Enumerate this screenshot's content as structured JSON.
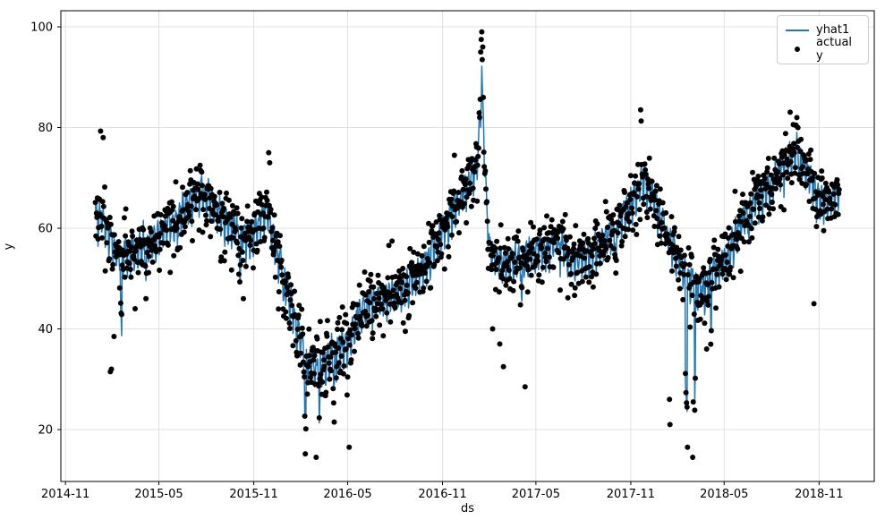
{
  "figure": {
    "background": "#ffffff"
  },
  "chart_data": {
    "type": "line+scatter",
    "title": "",
    "xlabel": "ds",
    "ylabel": "y",
    "grid": true,
    "xlim": [
      "2014-10-23",
      "2019-02-16"
    ],
    "ylim": [
      9.7,
      103.2
    ],
    "yticks": [
      20,
      40,
      60,
      80,
      100
    ],
    "xticks": [
      {
        "label": "2014-11",
        "date": "2014-11-01"
      },
      {
        "label": "2015-05",
        "date": "2015-05-01"
      },
      {
        "label": "2015-11",
        "date": "2015-11-01"
      },
      {
        "label": "2016-05",
        "date": "2016-05-01"
      },
      {
        "label": "2016-11",
        "date": "2016-11-01"
      },
      {
        "label": "2017-05",
        "date": "2017-05-01"
      },
      {
        "label": "2017-11",
        "date": "2017-11-01"
      },
      {
        "label": "2018-05",
        "date": "2018-05-01"
      },
      {
        "label": "2018-11",
        "date": "2018-11-01"
      }
    ],
    "legend": {
      "position": "upper right",
      "entries": [
        {
          "label": "yhat1",
          "type": "line",
          "color": "#1f77b4"
        },
        {
          "label": "actual y",
          "type": "scatter",
          "color": "#000000"
        }
      ]
    },
    "colors": {
      "line": "#1f77b4",
      "dots": "#000000",
      "grid": "#e0e0e0",
      "spine": "#000000",
      "tick_text": "#000000"
    },
    "series": {
      "sampling": "daily",
      "start": "2014-12-29",
      "end": "2018-12-10",
      "note": "yhat1 = blue daily forecast line (trend + weekly seasonality + dips); actual y = black dots scattered around it; values read off axes",
      "trend_anchors": [
        [
          "2014-12-29",
          62
        ],
        [
          "2015-01-10",
          63
        ],
        [
          "2015-01-25",
          59
        ],
        [
          "2015-02-10",
          55
        ],
        [
          "2015-03-01",
          56
        ],
        [
          "2015-04-01",
          57
        ],
        [
          "2015-05-01",
          59
        ],
        [
          "2015-06-01",
          62
        ],
        [
          "2015-07-01",
          66
        ],
        [
          "2015-07-20",
          68
        ],
        [
          "2015-08-10",
          66
        ],
        [
          "2015-09-01",
          62
        ],
        [
          "2015-10-01",
          60
        ],
        [
          "2015-11-01",
          59
        ],
        [
          "2015-11-22",
          64
        ],
        [
          "2015-12-01",
          62
        ],
        [
          "2015-12-15",
          56
        ],
        [
          "2016-01-01",
          50
        ],
        [
          "2016-01-20",
          42
        ],
        [
          "2016-02-10",
          35
        ],
        [
          "2016-03-01",
          32
        ],
        [
          "2016-03-20",
          34
        ],
        [
          "2016-04-10",
          36
        ],
        [
          "2016-05-01",
          38
        ],
        [
          "2016-05-20",
          43
        ],
        [
          "2016-06-10",
          46
        ],
        [
          "2016-07-01",
          47
        ],
        [
          "2016-08-01",
          47
        ],
        [
          "2016-09-01",
          50
        ],
        [
          "2016-10-01",
          54
        ],
        [
          "2016-11-01",
          60
        ],
        [
          "2016-12-01",
          66
        ],
        [
          "2016-12-20",
          69
        ],
        [
          "2017-01-05",
          72
        ],
        [
          "2017-01-12",
          80
        ],
        [
          "2017-01-16",
          90
        ],
        [
          "2017-01-20",
          79
        ],
        [
          "2017-01-26",
          64
        ],
        [
          "2017-02-01",
          56
        ],
        [
          "2017-02-15",
          54
        ],
        [
          "2017-03-15",
          54
        ],
        [
          "2017-04-15",
          55
        ],
        [
          "2017-05-15",
          56
        ],
        [
          "2017-06-10",
          58
        ],
        [
          "2017-07-01",
          55
        ],
        [
          "2017-08-01",
          54
        ],
        [
          "2017-09-01",
          57
        ],
        [
          "2017-10-01",
          61
        ],
        [
          "2017-11-01",
          65
        ],
        [
          "2017-11-20",
          70
        ],
        [
          "2017-12-10",
          68
        ],
        [
          "2018-01-01",
          62
        ],
        [
          "2018-01-20",
          57
        ],
        [
          "2018-02-10",
          52
        ],
        [
          "2018-03-01",
          50
        ],
        [
          "2018-03-20",
          48
        ],
        [
          "2018-04-10",
          52
        ],
        [
          "2018-05-01",
          54
        ],
        [
          "2018-05-20",
          58
        ],
        [
          "2018-06-10",
          63
        ],
        [
          "2018-07-01",
          66
        ],
        [
          "2018-08-01",
          69
        ],
        [
          "2018-09-01",
          74
        ],
        [
          "2018-09-18",
          76
        ],
        [
          "2018-10-10",
          72
        ],
        [
          "2018-11-01",
          66
        ],
        [
          "2018-11-20",
          66
        ],
        [
          "2018-12-10",
          68
        ]
      ],
      "weekly_pattern_sun_to_sat": [
        -3.5,
        0.5,
        1.2,
        1.5,
        1.0,
        0.0,
        -4.5
      ],
      "line_noise_sd": 1.0,
      "dot_noise_sd": 2.2,
      "dip_events": [
        [
          "2015-02-16",
          3,
          14
        ],
        [
          "2015-04-06",
          2,
          6
        ],
        [
          "2015-06-08",
          1,
          5
        ],
        [
          "2015-10-05",
          2,
          10
        ],
        [
          "2015-12-28",
          3,
          6
        ],
        [
          "2016-02-08",
          3,
          14
        ],
        [
          "2016-03-07",
          2,
          10
        ],
        [
          "2016-04-04",
          2,
          8
        ],
        [
          "2016-06-06",
          2,
          5
        ],
        [
          "2017-04-03",
          2,
          10
        ],
        [
          "2017-10-02",
          3,
          8
        ],
        [
          "2018-02-15",
          4,
          22
        ],
        [
          "2018-03-05",
          2,
          22
        ],
        [
          "2018-04-05",
          2,
          12
        ],
        [
          "2018-06-18",
          2,
          6
        ],
        [
          "2018-09-24",
          2,
          5
        ]
      ],
      "outlier_dots": [
        [
          "2015-01-08",
          79.3
        ],
        [
          "2015-01-13",
          78
        ],
        [
          "2015-01-27",
          31.5
        ],
        [
          "2015-01-29",
          32
        ],
        [
          "2015-02-03",
          38.5
        ],
        [
          "2015-03-16",
          44
        ],
        [
          "2015-10-12",
          46
        ],
        [
          "2015-11-30",
          75
        ],
        [
          "2015-12-02",
          73
        ],
        [
          "2016-02-09",
          15.2
        ],
        [
          "2016-03-01",
          14.5
        ],
        [
          "2016-04-05",
          21.5
        ],
        [
          "2016-05-04",
          16.5
        ],
        [
          "2016-11-24",
          74.5
        ],
        [
          "2017-01-14",
          95
        ],
        [
          "2017-01-15",
          97.5
        ],
        [
          "2017-01-16",
          99
        ],
        [
          "2017-01-17",
          93.5
        ],
        [
          "2017-01-18",
          96
        ],
        [
          "2017-02-06",
          40
        ],
        [
          "2017-02-20",
          37
        ],
        [
          "2017-02-27",
          32.5
        ],
        [
          "2017-04-10",
          28.5
        ],
        [
          "2017-11-20",
          83.5
        ],
        [
          "2017-11-21",
          81.3
        ],
        [
          "2018-01-15",
          26
        ],
        [
          "2018-01-16",
          21
        ],
        [
          "2018-02-19",
          16.5
        ],
        [
          "2018-03-01",
          14.5
        ],
        [
          "2018-03-02",
          25.5
        ],
        [
          "2018-03-28",
          36
        ],
        [
          "2018-09-17",
          80.5
        ],
        [
          "2018-10-22",
          45
        ]
      ],
      "seed": 7
    }
  }
}
